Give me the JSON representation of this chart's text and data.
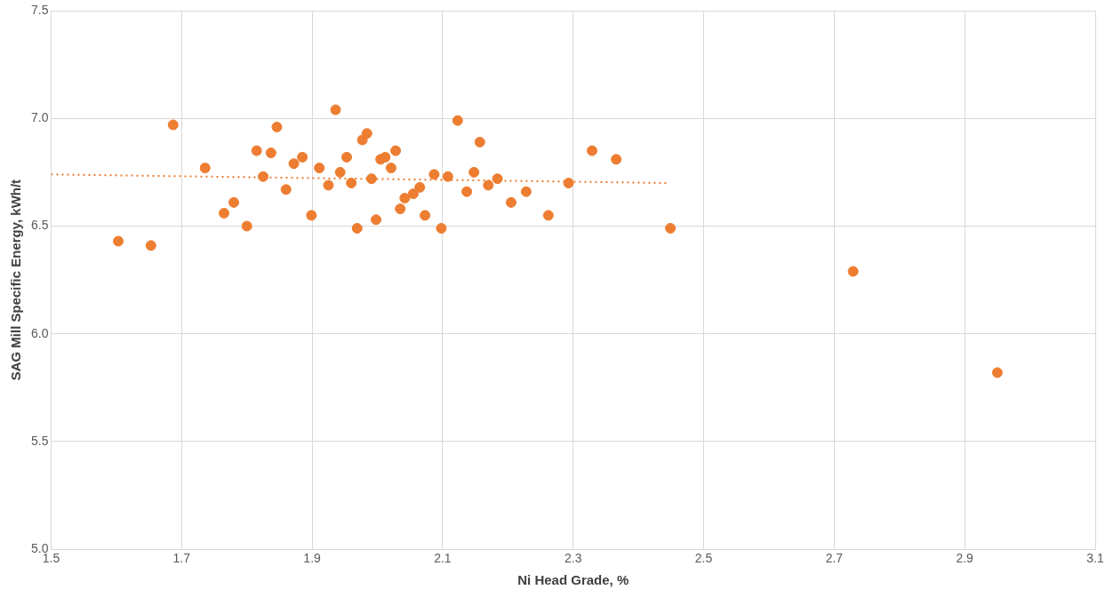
{
  "chart_data": {
    "type": "scatter",
    "xlabel": "Ni Head Grade, %",
    "ylabel": "SAG Mill Specific Energy, kWh/t",
    "xlim": [
      1.5,
      3.1
    ],
    "xticks": [
      1.5,
      1.7,
      1.9,
      2.1,
      2.3,
      2.5,
      2.7,
      2.9,
      3.1
    ],
    "ylim": [
      5.0,
      7.5
    ],
    "yticks": [
      {
        "value": 5,
        "label": "5.0"
      },
      5.5,
      {
        "value": 6,
        "label": "6.0"
      },
      6.5,
      {
        "value": 7,
        "label": "7.0"
      },
      7.5
    ],
    "grid": true,
    "legend": false,
    "marker": "circle",
    "series": [
      {
        "color": "#ed7d31",
        "x": [
          1.603,
          1.653,
          1.687,
          1.736,
          1.765,
          1.78,
          1.8,
          1.815,
          1.825,
          1.837,
          1.846,
          1.86,
          1.872,
          1.885,
          1.899,
          1.911,
          1.925,
          1.936,
          1.943,
          1.953,
          1.96,
          1.969,
          1.977,
          1.984,
          1.991,
          1.998,
          2.005,
          2.012,
          2.021,
          2.028,
          2.035,
          2.042,
          2.055,
          2.065,
          2.073,
          2.087,
          2.098,
          2.108,
          2.123,
          2.137,
          2.148,
          2.157,
          2.17,
          2.184,
          2.205,
          2.228,
          2.262,
          2.293,
          2.329,
          2.366,
          2.449,
          2.729,
          2.95
        ],
        "values": [
          6.43,
          6.41,
          6.97,
          6.77,
          6.56,
          6.61,
          6.5,
          6.85,
          6.73,
          6.84,
          6.96,
          6.67,
          6.79,
          6.82,
          6.55,
          6.77,
          6.69,
          7.04,
          6.75,
          6.82,
          6.7,
          6.49,
          6.9,
          6.93,
          6.72,
          6.53,
          6.81,
          6.82,
          6.77,
          6.85,
          6.58,
          6.63,
          6.65,
          6.68,
          6.55,
          6.74,
          6.49,
          6.73,
          6.99,
          6.66,
          6.75,
          6.89,
          6.69,
          6.72,
          6.61,
          6.66,
          6.55,
          6.7,
          6.85,
          6.81,
          6.49,
          6.29,
          5.82
        ]
      },
      {
        "type": "line",
        "color": "#ed7d31",
        "line_style": "dotted",
        "marker": "none",
        "x": [
          1.5,
          2.444
        ],
        "values": [
          6.74,
          6.7
        ]
      }
    ]
  }
}
